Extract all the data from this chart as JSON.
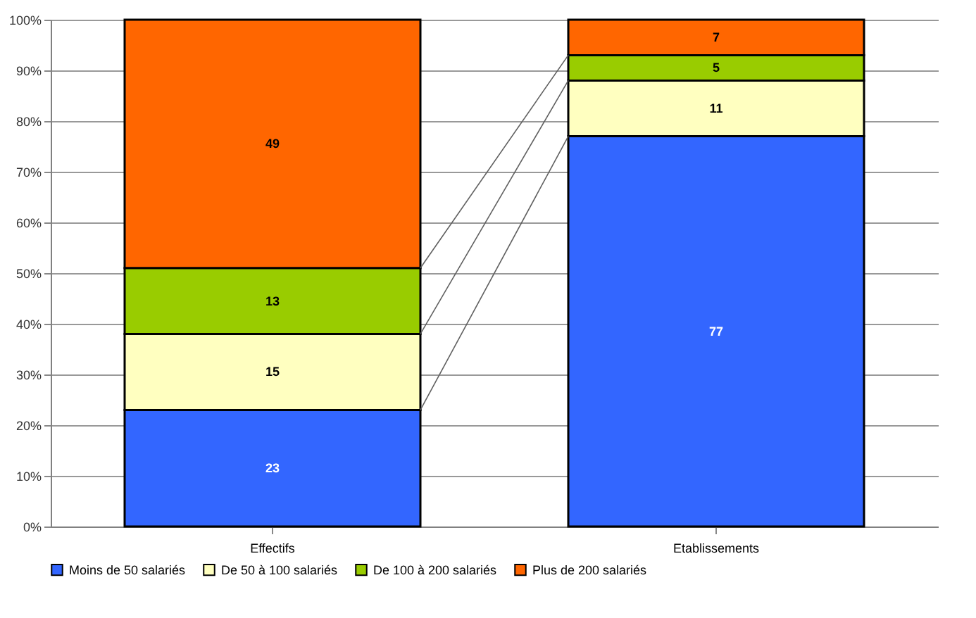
{
  "chart_data": {
    "type": "bar",
    "stacked": true,
    "data_labels": true,
    "grid": "y",
    "legend": "bottom",
    "categories": [
      "Effectifs",
      "Etablissements"
    ],
    "ylim": [
      0,
      100
    ],
    "yticks": [
      {
        "value": 0,
        "label": "0%"
      },
      {
        "value": 10,
        "label": "10%"
      },
      {
        "value": 20,
        "label": "20%"
      },
      {
        "value": 30,
        "label": "30%"
      },
      {
        "value": 40,
        "label": "40%"
      },
      {
        "value": 50,
        "label": "50%"
      },
      {
        "value": 60,
        "label": "60%"
      },
      {
        "value": 70,
        "label": "70%"
      },
      {
        "value": 80,
        "label": "80%"
      },
      {
        "value": 90,
        "label": "90%"
      },
      {
        "value": 100,
        "label": "100%"
      }
    ],
    "series": [
      {
        "name": "Moins de 50 salariés",
        "color": "#3366ff",
        "values": [
          23,
          77
        ]
      },
      {
        "name": "De 50 à 100 salariés",
        "color": "#ffffc0",
        "values": [
          15,
          11
        ]
      },
      {
        "name": "De 100 à 200 salariés",
        "color": "#99cc00",
        "values": [
          13,
          5
        ]
      },
      {
        "name": "Plus de 200 salariés",
        "color": "#ff6600",
        "values": [
          49,
          7
        ]
      }
    ]
  }
}
